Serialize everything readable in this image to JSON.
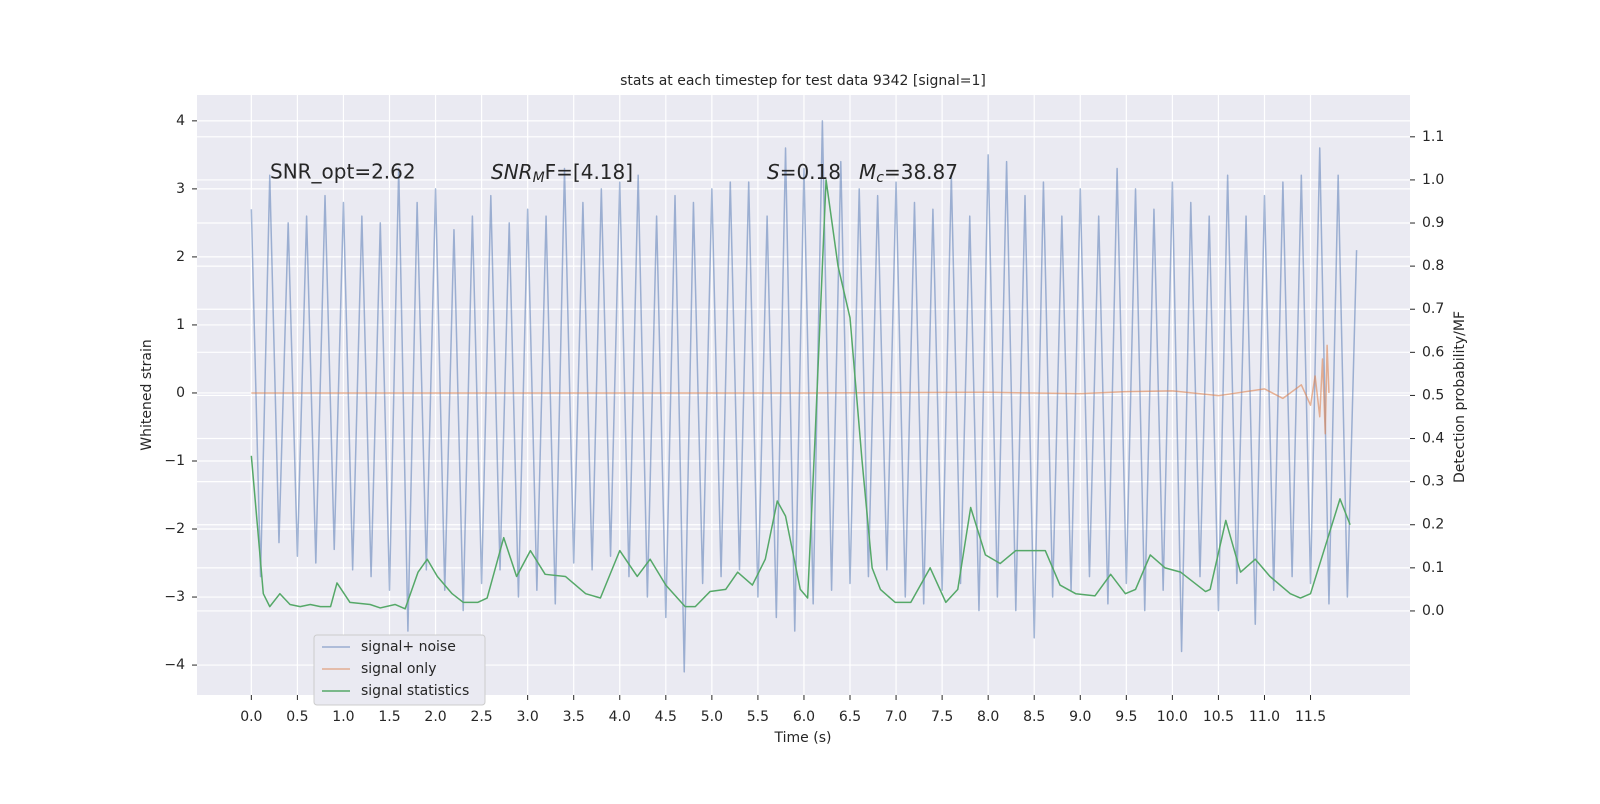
{
  "chart_data": {
    "type": "line",
    "title": "stats at each timestep for test data 9342 [signal=1]",
    "x_label": "Time (s)",
    "y_label": "Whitened strain",
    "y2_label": "Detection probability/MF",
    "annotations": [
      "SNR_opt=2.62",
      [
        "SNR",
        "M",
        "F=[4.18]"
      ],
      [
        "S",
        "=0.18"
      ],
      [
        "M",
        "c",
        "=38.87"
      ]
    ],
    "grid": true,
    "legend": "lower left",
    "xlim": [
      -0.59,
      12.58
    ],
    "ylim": [
      -4.44,
      4.38
    ],
    "y2lim": [
      -0.195,
      1.197
    ],
    "xticks": [
      {
        "value": 0,
        "label": "0.0"
      },
      0.5,
      {
        "value": 1,
        "label": "1.0"
      },
      1.5,
      {
        "value": 2,
        "label": "2.0"
      },
      2.5,
      {
        "value": 3,
        "label": "3.0"
      },
      3.5,
      {
        "value": 4,
        "label": "4.0"
      },
      4.5,
      {
        "value": 5,
        "label": "5.0"
      },
      5.5,
      {
        "value": 6,
        "label": "6.0"
      },
      6.5,
      {
        "value": 7,
        "label": "7.0"
      },
      7.5,
      {
        "value": 8,
        "label": "8.0"
      },
      8.5,
      {
        "value": 9,
        "label": "9.0"
      },
      9.5,
      {
        "value": 10,
        "label": "10.0"
      },
      10.5,
      {
        "value": 11,
        "label": "11.0"
      },
      11.5
    ],
    "yticks": [
      {
        "value": -4,
        "label": "−4"
      },
      {
        "value": -3,
        "label": "−3"
      },
      {
        "value": -2,
        "label": "−2"
      },
      {
        "value": -1,
        "label": "−1"
      },
      0,
      1,
      2,
      3,
      4
    ],
    "y2ticks": [
      {
        "value": 0,
        "label": "0.0"
      },
      0.1,
      0.2,
      0.3,
      0.4,
      0.5,
      0.6,
      0.7,
      0.8,
      0.9,
      {
        "value": 1,
        "label": "1.0"
      },
      1.1
    ],
    "series": [
      {
        "name": "signal+ noise",
        "color": "#4c72b0",
        "opacity": 0.5,
        "x": [
          0,
          0.1,
          0.2,
          0.3,
          0.4,
          0.5,
          0.6,
          0.7,
          0.8,
          0.9,
          1,
          1.1,
          1.2,
          1.3,
          1.4,
          1.5,
          1.6,
          1.7,
          1.8,
          1.9,
          2,
          2.1,
          2.2,
          2.3,
          2.4,
          2.5,
          2.6,
          2.7,
          2.8,
          2.9,
          3,
          3.1,
          3.2,
          3.3,
          3.4,
          3.5,
          3.6,
          3.7,
          3.8,
          3.9,
          4,
          4.1,
          4.2,
          4.3,
          4.4,
          4.5,
          4.6,
          4.7,
          4.8,
          4.9,
          5,
          5.1,
          5.2,
          5.3,
          5.4,
          5.5,
          5.6,
          5.7,
          5.8,
          5.9,
          6,
          6.1,
          6.2,
          6.3,
          6.4,
          6.5,
          6.6,
          6.7,
          6.8,
          6.9,
          7,
          7.1,
          7.2,
          7.3,
          7.4,
          7.5,
          7.6,
          7.7,
          7.8,
          7.9,
          8,
          8.1,
          8.2,
          8.3,
          8.4,
          8.5,
          8.6,
          8.7,
          8.8,
          8.9,
          9,
          9.1,
          9.2,
          9.3,
          9.4,
          9.5,
          9.6,
          9.7,
          9.8,
          9.9,
          10,
          10.1,
          10.2,
          10.3,
          10.4,
          10.5,
          10.6,
          10.7,
          10.8,
          10.9,
          11,
          11.1,
          11.2,
          11.3,
          11.4,
          11.5,
          11.6,
          11.7,
          11.8,
          11.9,
          12
        ],
        "values": [
          2.7,
          -2.7,
          3.2,
          -2.2,
          2.5,
          -2.4,
          2.6,
          -2.5,
          2.9,
          -2.3,
          2.8,
          -2.6,
          2.6,
          -2.7,
          2.5,
          -2.9,
          3.3,
          -3.5,
          2.8,
          -2.6,
          3.0,
          -2.9,
          2.4,
          -3.2,
          2.6,
          -2.8,
          2.9,
          -2.6,
          2.5,
          -3.0,
          2.7,
          -2.9,
          2.6,
          -3.1,
          3.3,
          -2.5,
          2.8,
          -2.6,
          3.0,
          -2.4,
          3.1,
          -2.7,
          3.2,
          -3.0,
          2.6,
          -3.3,
          2.9,
          -4.1,
          2.8,
          -2.8,
          3.0,
          -2.7,
          3.1,
          -2.6,
          3.1,
          -3.0,
          2.6,
          -3.3,
          3.6,
          -3.5,
          3.3,
          -3.1,
          4.0,
          -2.9,
          3.4,
          -2.8,
          3.0,
          -2.7,
          2.9,
          -2.6,
          3.1,
          -3.0,
          2.8,
          -3.1,
          2.7,
          -2.9,
          3.2,
          -2.8,
          2.6,
          -3.2,
          3.5,
          -3.0,
          3.4,
          -3.2,
          2.9,
          -3.6,
          3.1,
          -3.0,
          2.6,
          -2.9,
          3.0,
          -2.7,
          2.6,
          -3.1,
          3.3,
          -2.8,
          3.0,
          -3.2,
          2.7,
          -2.9,
          3.1,
          -3.8,
          2.8,
          -2.7,
          2.6,
          -3.2,
          3.2,
          -2.8,
          2.6,
          -3.4,
          2.9,
          -2.9,
          3.1,
          -2.7,
          3.2,
          -2.8,
          3.6,
          -3.1,
          3.2,
          -3.0,
          2.1
        ]
      },
      {
        "name": "signal only",
        "color": "#dd8452",
        "opacity": 0.6,
        "x": [
          0,
          2,
          4,
          6,
          8,
          9,
          9.5,
          10,
          10.5,
          11,
          11.2,
          11.4,
          11.5,
          11.55,
          11.6,
          11.63,
          11.66,
          11.68,
          11.7
        ],
        "values": [
          0,
          0,
          0,
          0,
          0.01,
          -0.01,
          0.02,
          0.03,
          -0.04,
          0.06,
          -0.08,
          0.12,
          -0.18,
          0.25,
          -0.35,
          0.5,
          -0.6,
          0.7,
          0
        ]
      },
      {
        "name": "signal statistics",
        "color": "#55a868",
        "opacity": 1,
        "axis": "y2",
        "x": [
          0,
          0.13,
          0.2,
          0.31,
          0.42,
          0.53,
          0.64,
          0.75,
          0.86,
          0.93,
          1.07,
          1.29,
          1.4,
          1.56,
          1.67,
          1.81,
          1.91,
          2.02,
          2.18,
          2.3,
          2.46,
          2.56,
          2.74,
          2.88,
          3.03,
          3.19,
          3.41,
          3.63,
          3.79,
          4.0,
          4.19,
          4.33,
          4.5,
          4.71,
          4.82,
          4.98,
          5.15,
          5.28,
          5.44,
          5.58,
          5.71,
          5.8,
          5.96,
          6.04,
          6.12,
          6.24,
          6.37,
          6.5,
          6.63,
          6.74,
          6.83,
          6.99,
          7.16,
          7.37,
          7.54,
          7.67,
          7.81,
          7.97,
          8.13,
          8.3,
          8.46,
          8.62,
          8.78,
          8.95,
          9.16,
          9.33,
          9.49,
          9.6,
          9.76,
          9.92,
          10.09,
          10.36,
          10.41,
          10.58,
          10.74,
          10.9,
          11.06,
          11.28,
          11.39,
          11.5,
          11.66,
          11.82,
          11.93
        ],
        "values": [
          0.36,
          0.04,
          0.01,
          0.04,
          0.015,
          0.01,
          0.015,
          0.01,
          0.01,
          0.065,
          0.02,
          0.015,
          0.007,
          0.015,
          0.005,
          0.09,
          0.12,
          0.08,
          0.04,
          0.02,
          0.02,
          0.03,
          0.17,
          0.08,
          0.14,
          0.085,
          0.08,
          0.04,
          0.03,
          0.14,
          0.08,
          0.12,
          0.06,
          0.01,
          0.01,
          0.045,
          0.05,
          0.09,
          0.06,
          0.12,
          0.255,
          0.22,
          0.05,
          0.03,
          0.4,
          1.0,
          0.8,
          0.68,
          0.35,
          0.1,
          0.05,
          0.02,
          0.02,
          0.1,
          0.02,
          0.05,
          0.24,
          0.13,
          0.11,
          0.14,
          0.14,
          0.14,
          0.06,
          0.04,
          0.035,
          0.085,
          0.04,
          0.05,
          0.13,
          0.1,
          0.09,
          0.045,
          0.05,
          0.21,
          0.09,
          0.12,
          0.08,
          0.04,
          0.03,
          0.04,
          0.15,
          0.26,
          0.2
        ]
      }
    ]
  }
}
